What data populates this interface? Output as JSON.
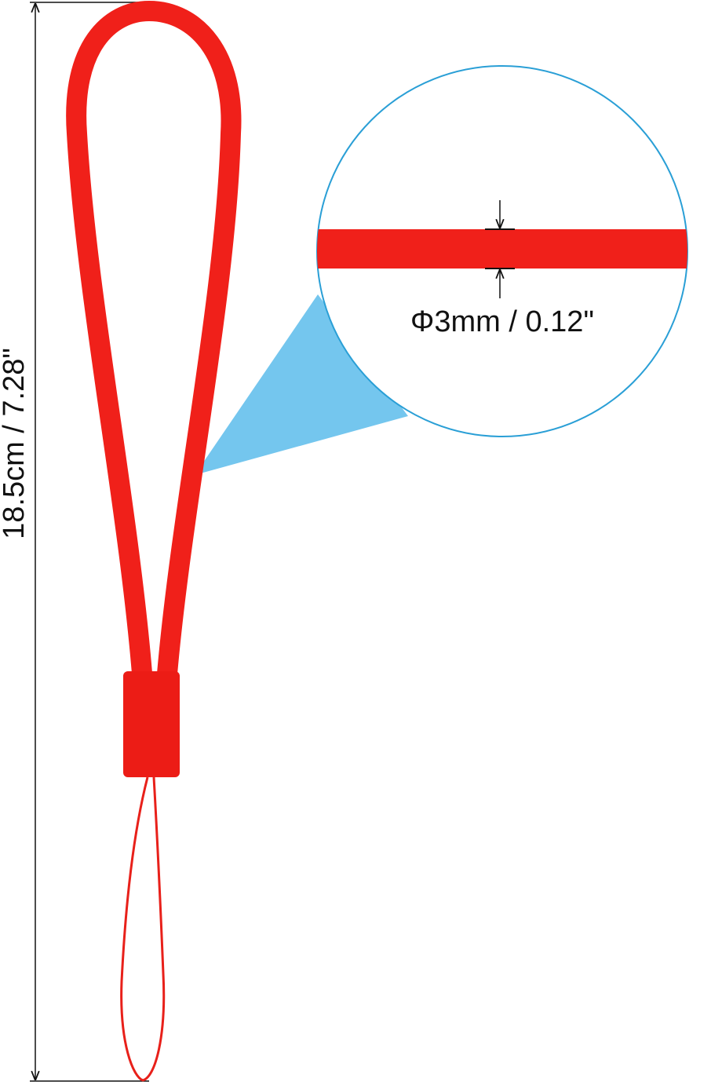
{
  "dimensions": {
    "length": "18.5cm / 7.28\"",
    "diameter": "Φ3mm / 0.12\""
  }
}
